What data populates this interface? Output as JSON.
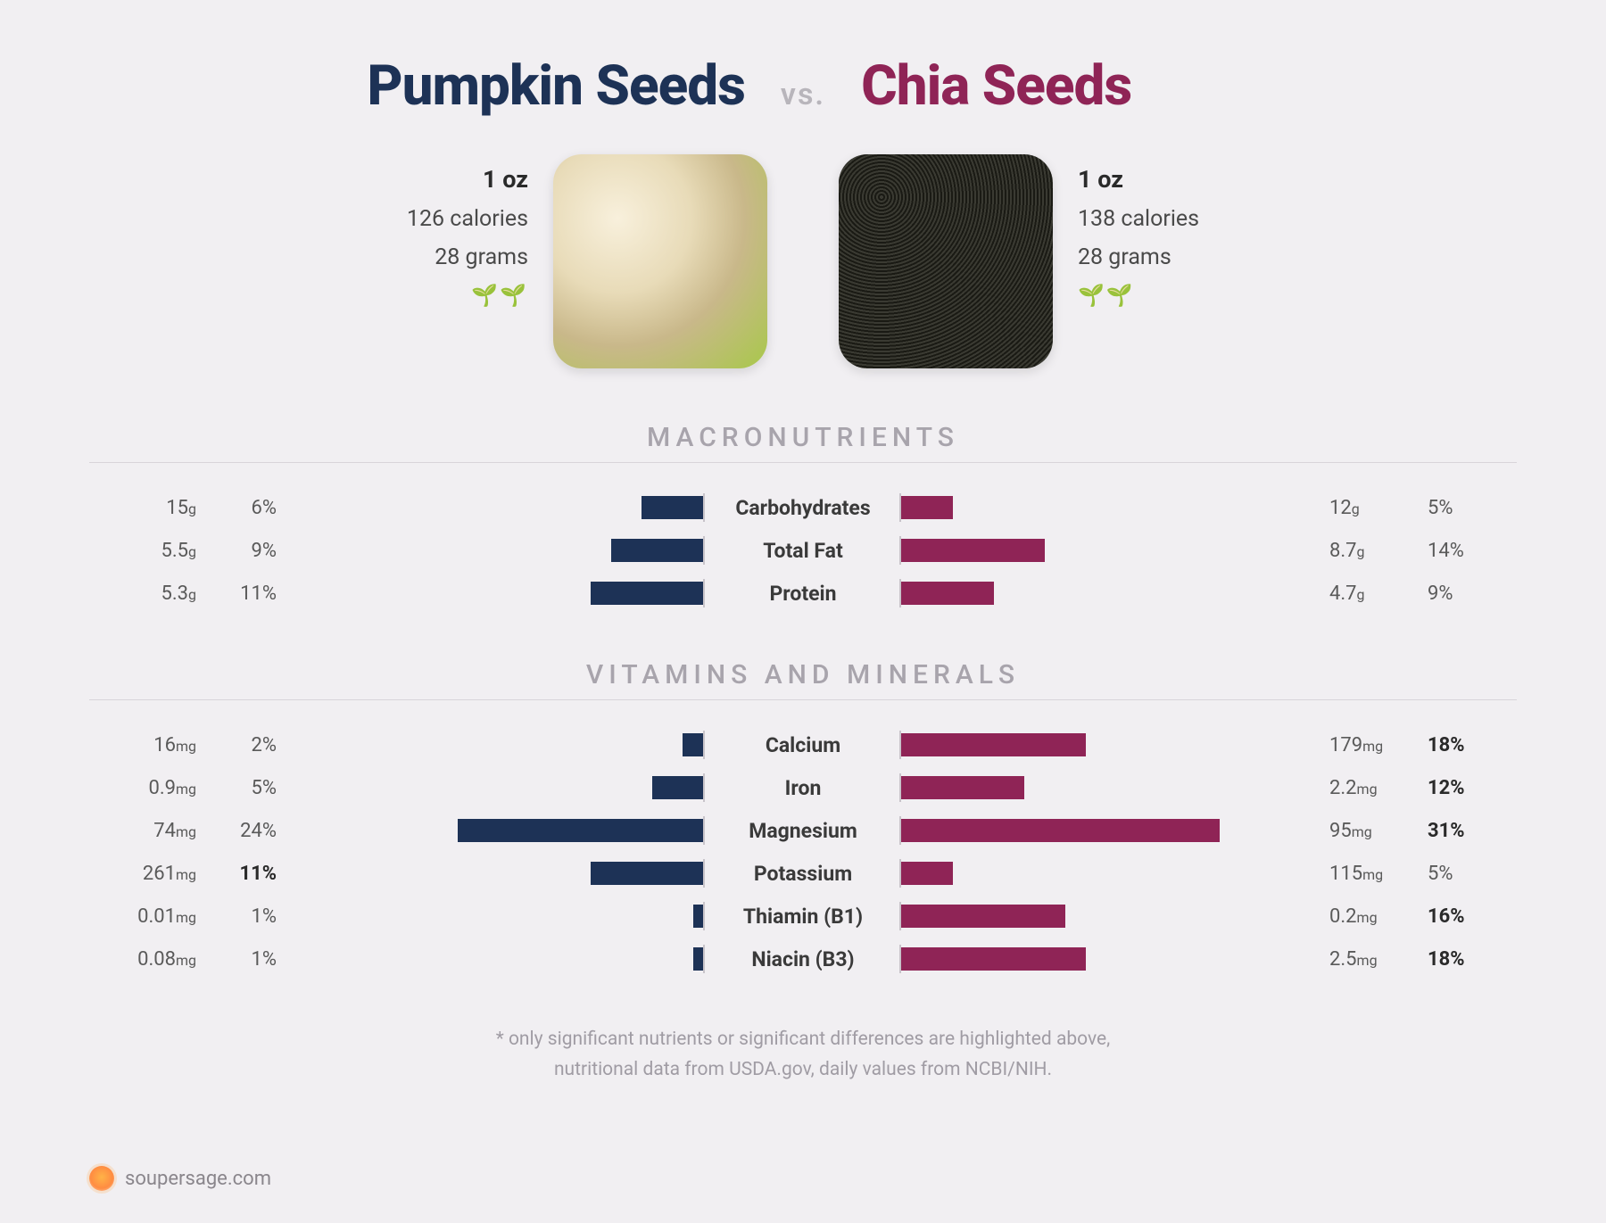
{
  "colors": {
    "left_primary": "#1d3256",
    "right_primary": "#8f2456",
    "background": "#f1eff2",
    "muted_text": "#a8a4ac",
    "divider": "#d8d4da"
  },
  "header": {
    "left_title": "Pumpkin Seeds",
    "vs": "vs.",
    "right_title": "Chia Seeds"
  },
  "left_food": {
    "serving": "1 oz",
    "calories": "126 calories",
    "weight": "28 grams",
    "sprout_icons": "🌱🌱"
  },
  "right_food": {
    "serving": "1 oz",
    "calories": "138 calories",
    "weight": "28 grams",
    "sprout_icons": "🌱🌱"
  },
  "sections": {
    "macros_title": "MACRONUTRIENTS",
    "vitamins_title": "VITAMINS AND MINERALS"
  },
  "bar_scale_max_pct": 40,
  "macros": [
    {
      "label": "Carbohydrates",
      "left_amount": "15",
      "left_unit": "g",
      "left_pct": 6,
      "left_bold": false,
      "right_amount": "12",
      "right_unit": "g",
      "right_pct": 5,
      "right_bold": false
    },
    {
      "label": "Total Fat",
      "left_amount": "5.5",
      "left_unit": "g",
      "left_pct": 9,
      "left_bold": false,
      "right_amount": "8.7",
      "right_unit": "g",
      "right_pct": 14,
      "right_bold": false
    },
    {
      "label": "Protein",
      "left_amount": "5.3",
      "left_unit": "g",
      "left_pct": 11,
      "left_bold": false,
      "right_amount": "4.7",
      "right_unit": "g",
      "right_pct": 9,
      "right_bold": false
    }
  ],
  "vitamins": [
    {
      "label": "Calcium",
      "left_amount": "16",
      "left_unit": "mg",
      "left_pct": 2,
      "left_bold": false,
      "right_amount": "179",
      "right_unit": "mg",
      "right_pct": 18,
      "right_bold": true
    },
    {
      "label": "Iron",
      "left_amount": "0.9",
      "left_unit": "mg",
      "left_pct": 5,
      "left_bold": false,
      "right_amount": "2.2",
      "right_unit": "mg",
      "right_pct": 12,
      "right_bold": true
    },
    {
      "label": "Magnesium",
      "left_amount": "74",
      "left_unit": "mg",
      "left_pct": 24,
      "left_bold": false,
      "right_amount": "95",
      "right_unit": "mg",
      "right_pct": 31,
      "right_bold": true
    },
    {
      "label": "Potassium",
      "left_amount": "261",
      "left_unit": "mg",
      "left_pct": 11,
      "left_bold": true,
      "right_amount": "115",
      "right_unit": "mg",
      "right_pct": 5,
      "right_bold": false
    },
    {
      "label": "Thiamin (B1)",
      "left_amount": "0.01",
      "left_unit": "mg",
      "left_pct": 1,
      "left_bold": false,
      "right_amount": "0.2",
      "right_unit": "mg",
      "right_pct": 16,
      "right_bold": true
    },
    {
      "label": "Niacin (B3)",
      "left_amount": "0.08",
      "left_unit": "mg",
      "left_pct": 1,
      "left_bold": false,
      "right_amount": "2.5",
      "right_unit": "mg",
      "right_pct": 18,
      "right_bold": true
    }
  ],
  "footnote_line1": "* only significant nutrients or significant differences are highlighted above,",
  "footnote_line2": "nutritional data from USDA.gov, daily values from NCBI/NIH.",
  "brand": "soupersage.com"
}
